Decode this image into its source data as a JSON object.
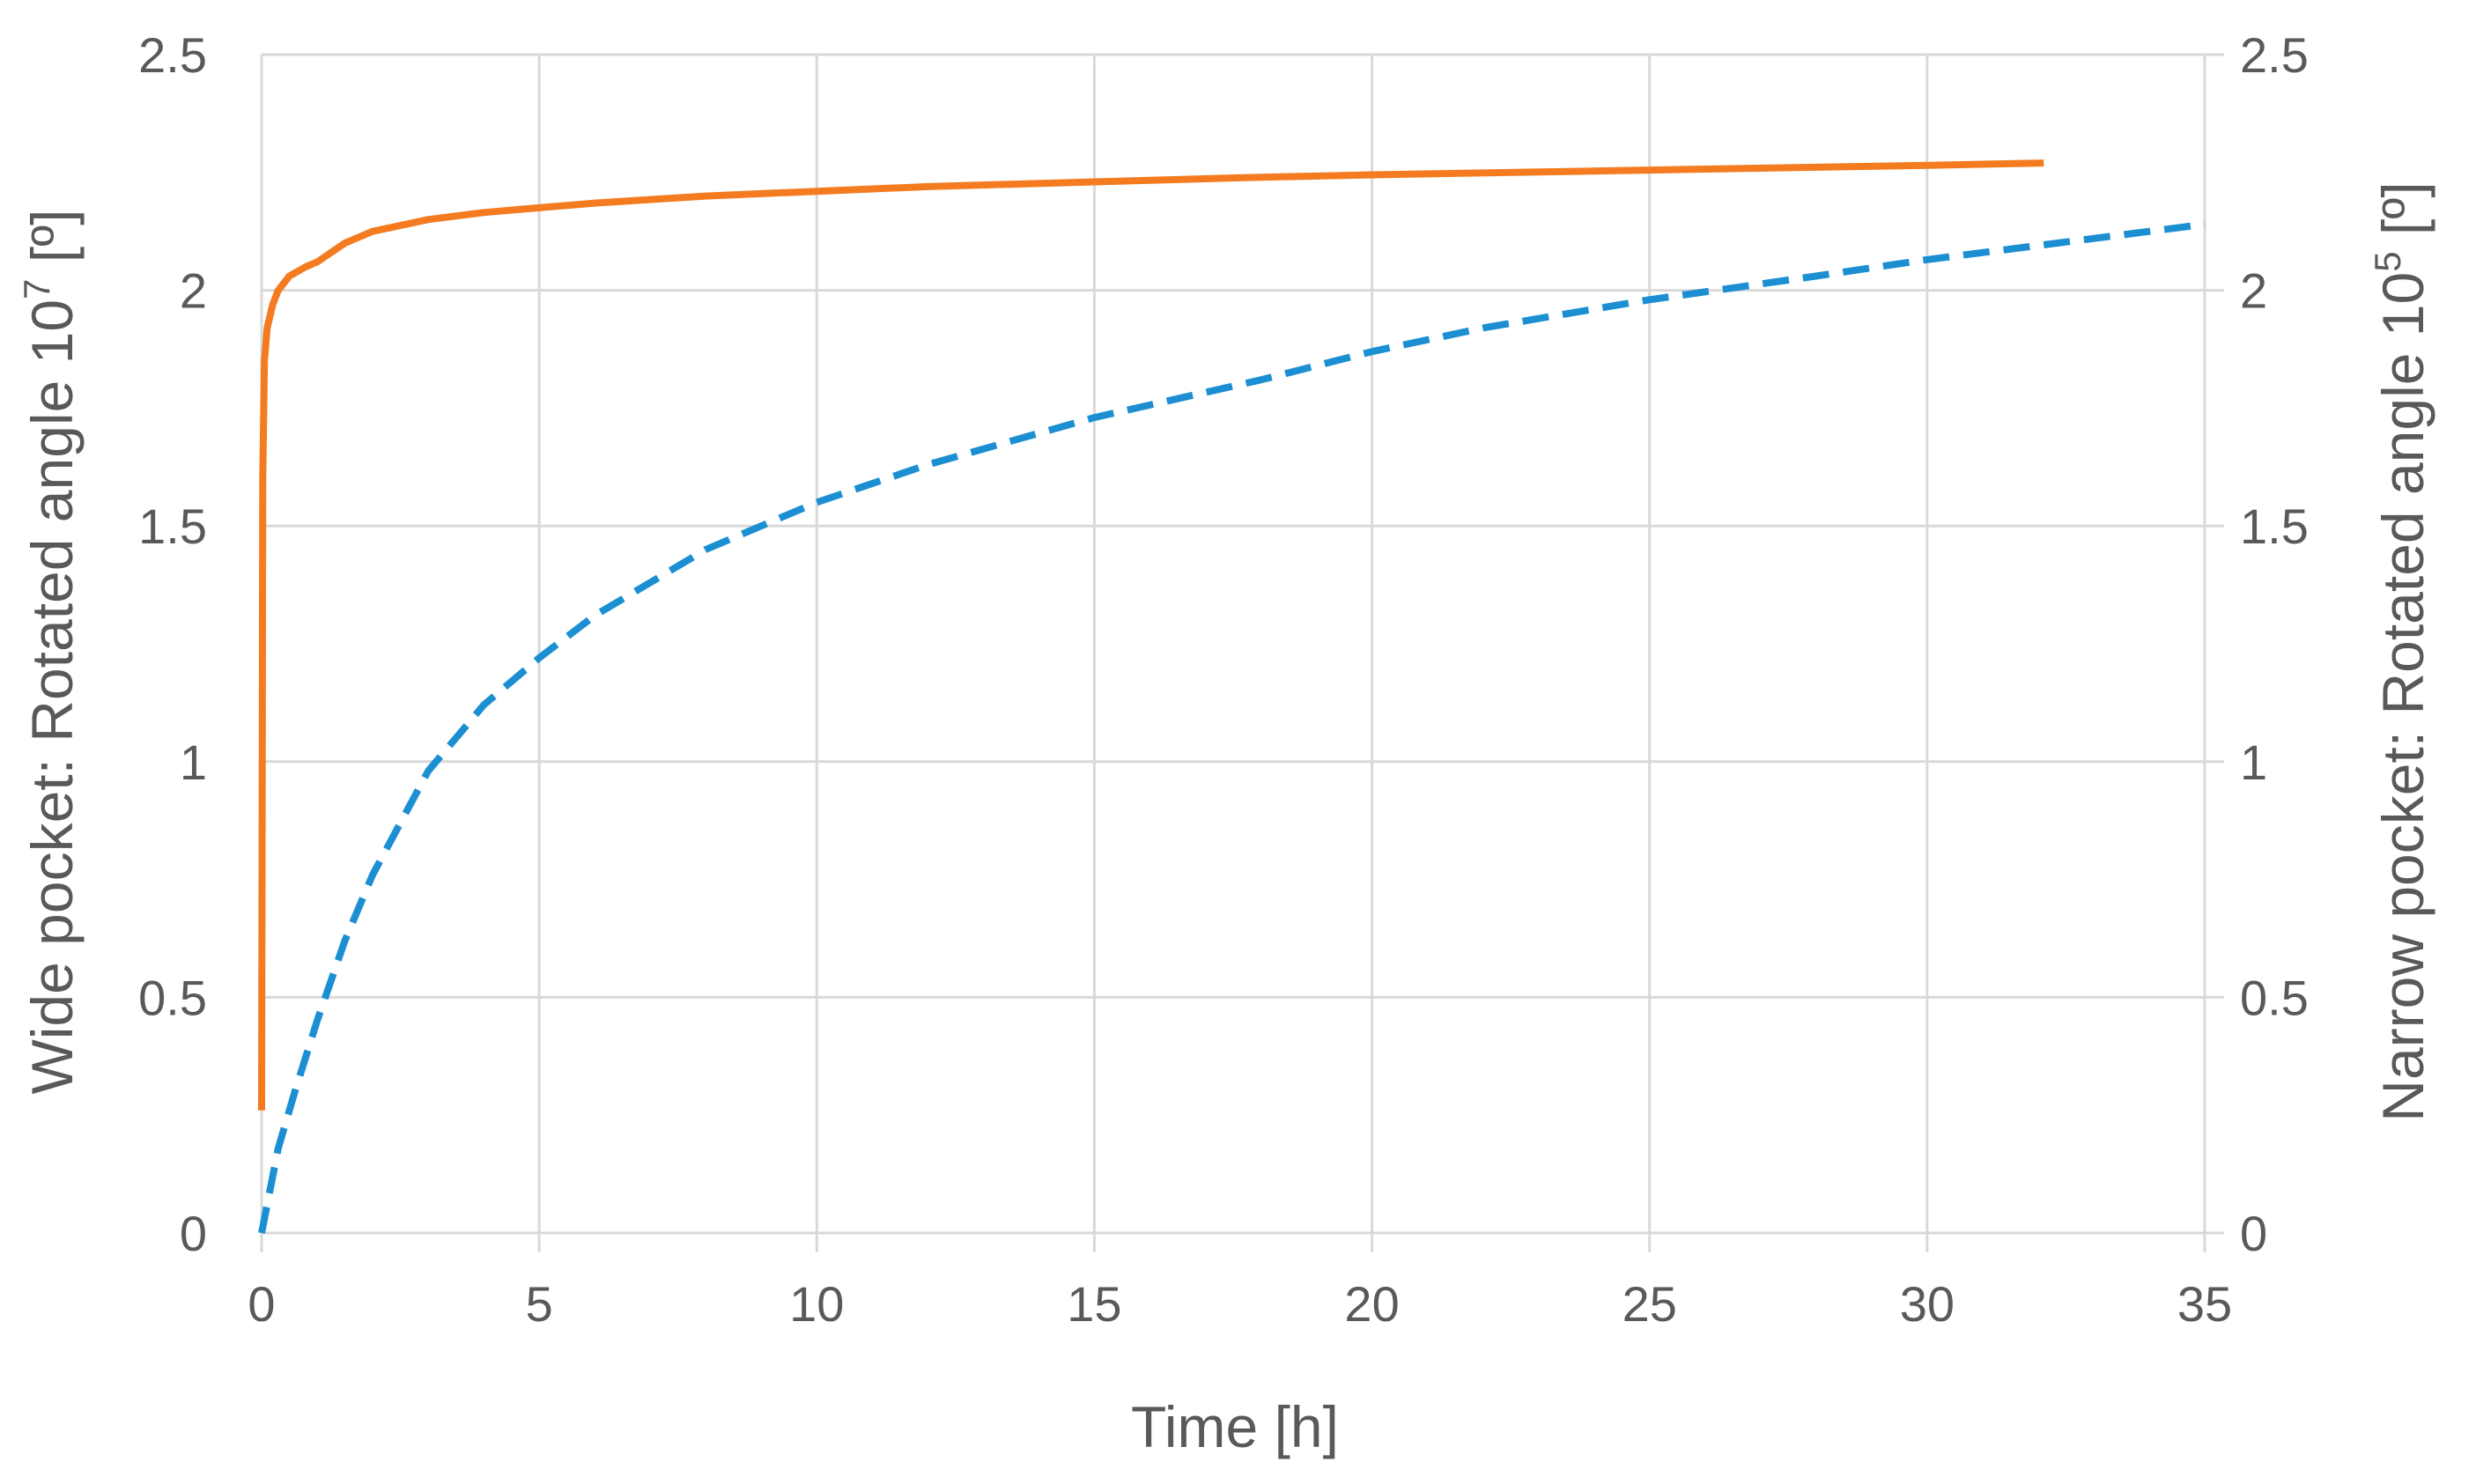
{
  "chart_data": {
    "type": "line",
    "xlabel": "Time [h]",
    "ylabel_left": {
      "text": "Wide pocket: Rotated angle 10",
      "superscript": "7",
      "suffix": " [º]"
    },
    "ylabel_right": {
      "text": "Narrow pocket: Rotated angle 10",
      "superscript": "5",
      "suffix": " [º]"
    },
    "xlim": [
      0,
      35
    ],
    "ylim_left": [
      0,
      2.5
    ],
    "ylim_right": [
      0,
      2.5
    ],
    "x_ticks": [
      "0",
      "5",
      "10",
      "15",
      "20",
      "25",
      "30",
      "35"
    ],
    "y_ticks_left": [
      "0",
      "0.5",
      "1",
      "1.5",
      "2",
      "2.5"
    ],
    "y_ticks_right": [
      "0",
      "0.5",
      "1",
      "1.5",
      "2",
      "2.5"
    ],
    "grid": true,
    "legend": "none",
    "series": [
      {
        "axis": "left",
        "color": "#F47B20",
        "style": "solid",
        "points": [
          [
            0,
            0.26
          ],
          [
            0.02,
            1.6
          ],
          [
            0.05,
            1.85
          ],
          [
            0.1,
            1.92
          ],
          [
            0.2,
            1.97
          ],
          [
            0.3,
            2.0
          ],
          [
            0.5,
            2.03
          ],
          [
            0.8,
            2.05
          ],
          [
            1.0,
            2.06
          ],
          [
            1.5,
            2.1
          ],
          [
            2.0,
            2.125
          ],
          [
            3.0,
            2.15
          ],
          [
            4.0,
            2.165
          ],
          [
            5.0,
            2.175
          ],
          [
            6.0,
            2.185
          ],
          [
            8.0,
            2.2
          ],
          [
            10.0,
            2.21
          ],
          [
            12.0,
            2.22
          ],
          [
            15.0,
            2.23
          ],
          [
            18.0,
            2.24
          ],
          [
            20.0,
            2.245
          ],
          [
            25.0,
            2.255
          ],
          [
            30.0,
            2.265
          ],
          [
            32.1,
            2.27
          ]
        ]
      },
      {
        "axis": "right",
        "color": "#1B8FD2",
        "style": "dashed",
        "points": [
          [
            0,
            0.0
          ],
          [
            0.3,
            0.18
          ],
          [
            0.6,
            0.3
          ],
          [
            1.0,
            0.45
          ],
          [
            1.5,
            0.62
          ],
          [
            2.0,
            0.76
          ],
          [
            3.0,
            0.98
          ],
          [
            4.0,
            1.12
          ],
          [
            5.0,
            1.22
          ],
          [
            6.0,
            1.31
          ],
          [
            8.0,
            1.45
          ],
          [
            10.0,
            1.55
          ],
          [
            12.0,
            1.63
          ],
          [
            15.0,
            1.73
          ],
          [
            18.0,
            1.81
          ],
          [
            20.0,
            1.87
          ],
          [
            22.0,
            1.92
          ],
          [
            25.0,
            1.98
          ],
          [
            28.0,
            2.03
          ],
          [
            30.0,
            2.065
          ],
          [
            32.0,
            2.095
          ],
          [
            35.0,
            2.14
          ]
        ]
      }
    ]
  },
  "colors": {
    "grid": "#D9D9D9",
    "text": "#595959",
    "wide_pocket": "#F47B20",
    "narrow_pocket": "#1B8FD2"
  }
}
